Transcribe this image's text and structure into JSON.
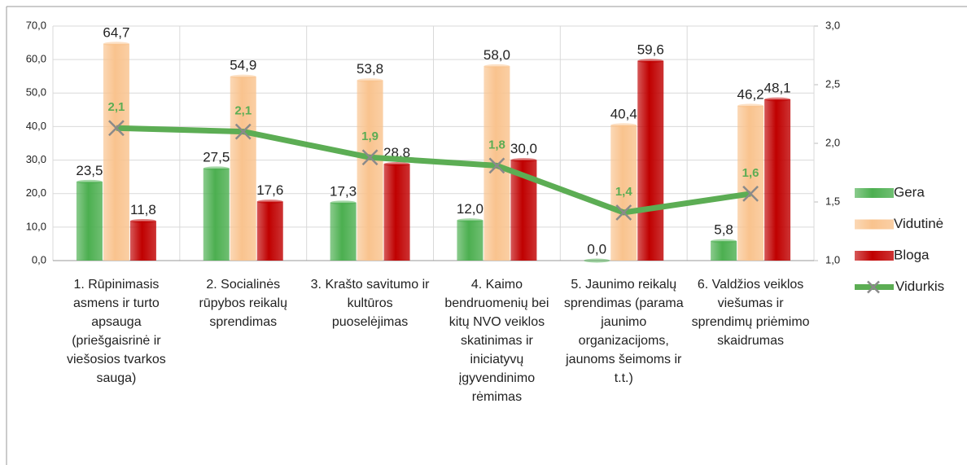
{
  "chart_data": {
    "type": "bar_line",
    "categories": [
      "1. Rūpinimasis asmens ir turto apsauga (priešgaisrinė ir viešosios tvarkos sauga)",
      "2. Socialinės rūpybos reikalų sprendimas",
      "3. Krašto savitumo ir kultūros puoselėjimas",
      "4. Kaimo bendruomenių bei kitų NVO veiklos skatinimas ir iniciatyvų įgyvendinimo rėmimas",
      "5. Jaunimo reikalų sprendimas (parama jaunimo organizacijoms, jaunoms šeimoms ir t.t.)",
      "6. Valdžios veiklos viešumas ir sprendimų priėmimo skaidrumas"
    ],
    "series": [
      {
        "name": "Gera",
        "color": "#4caf50",
        "values": [
          23.5,
          27.5,
          17.3,
          12.0,
          0.0,
          5.8
        ],
        "value_labels": [
          "23,5",
          "27,5",
          "17,3",
          "12,0",
          "0,0",
          "5,8"
        ]
      },
      {
        "name": "Vidutinė",
        "color": "#f9c38e",
        "values": [
          64.7,
          54.9,
          53.8,
          58.0,
          40.4,
          46.2
        ],
        "value_labels": [
          "64,7",
          "54,9",
          "53,8",
          "58,0",
          "40,4",
          "46,2"
        ]
      },
      {
        "name": "Bloga",
        "color": "#c00000",
        "values": [
          11.8,
          17.6,
          28.8,
          30.0,
          59.6,
          48.1
        ],
        "value_labels": [
          "11,8",
          "17,6",
          "28,8",
          "30,0",
          "59,6",
          "48,1"
        ]
      },
      {
        "name": "Vidurkis",
        "color": "#5cad54",
        "axis": "y2",
        "values": [
          2.13,
          2.1,
          1.88,
          1.81,
          1.41,
          1.57
        ],
        "value_labels": [
          "2,1",
          "2,1",
          "1,9",
          "1,8",
          "1,4",
          "1,6"
        ]
      }
    ],
    "ylim": [
      0,
      70
    ],
    "yticks": [
      {
        "value": 0,
        "label": "0,0"
      },
      {
        "value": 10,
        "label": "10,0"
      },
      {
        "value": 20,
        "label": "20,0"
      },
      {
        "value": 30,
        "label": "30,0"
      },
      {
        "value": 40,
        "label": "40,0"
      },
      {
        "value": 50,
        "label": "50,0"
      },
      {
        "value": 60,
        "label": "60,0"
      },
      {
        "value": 70,
        "label": "70,0"
      }
    ],
    "y2lim": [
      1,
      3
    ],
    "y2ticks": [
      {
        "value": 1,
        "label": "1,0"
      },
      {
        "value": 1.5,
        "label": "1,5"
      },
      {
        "value": 2,
        "label": "2,0"
      },
      {
        "value": 2.5,
        "label": "2,5"
      },
      {
        "value": 3,
        "label": "3,0"
      }
    ],
    "grid": true,
    "legend": "right"
  }
}
